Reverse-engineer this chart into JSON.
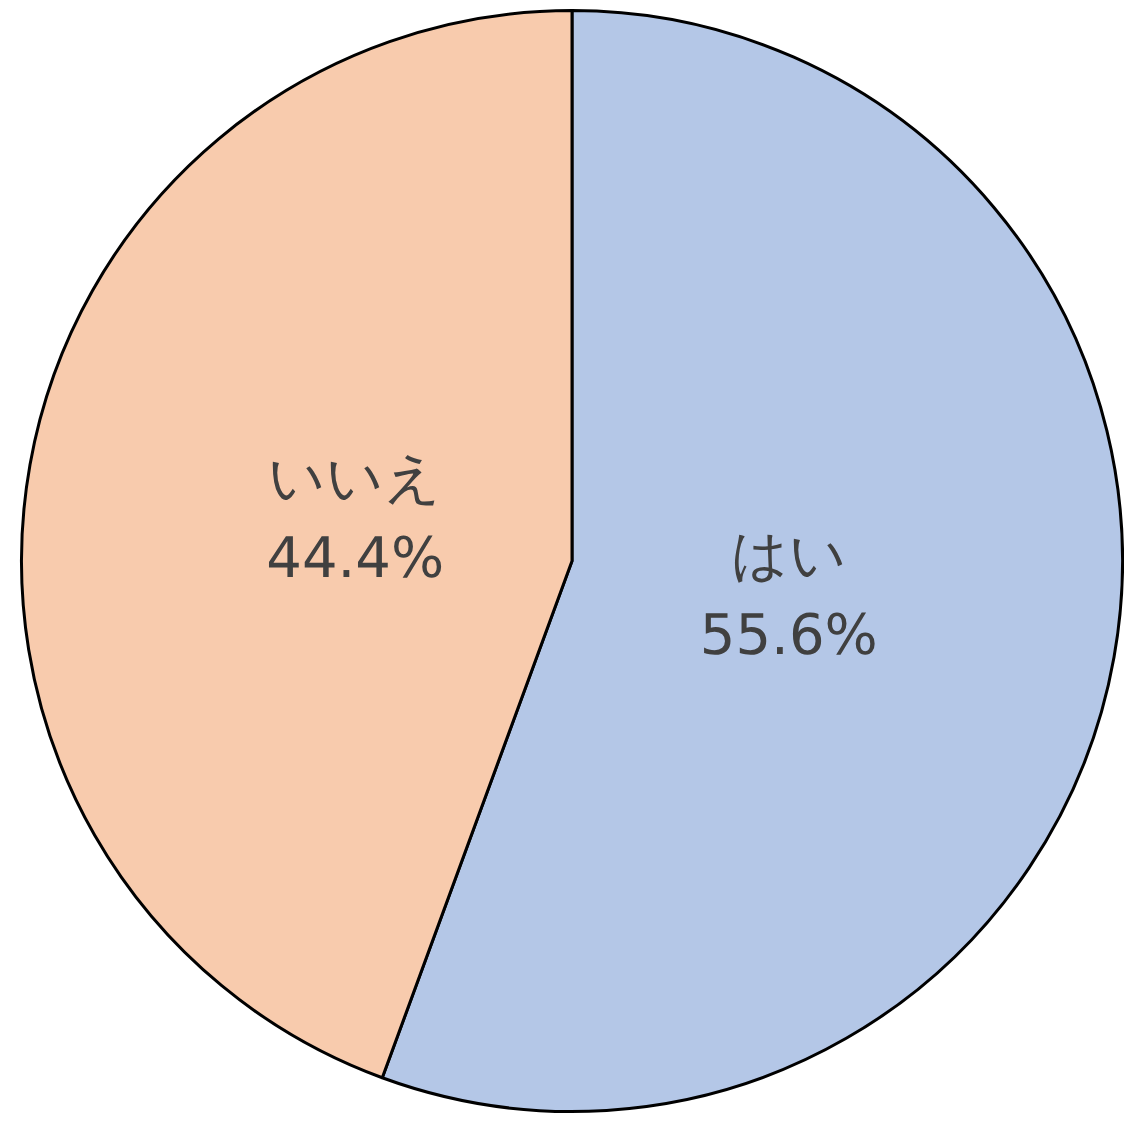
{
  "chart_data": {
    "type": "pie",
    "categories": [
      "はい",
      "いいえ"
    ],
    "values": [
      55.6,
      44.4
    ],
    "colors": [
      "#b4c7e7",
      "#f8cbad"
    ],
    "value_labels": [
      "55.6%",
      "44.4%"
    ],
    "legend": false
  }
}
